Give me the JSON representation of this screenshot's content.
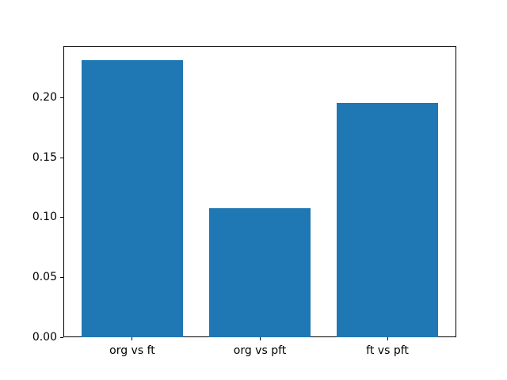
{
  "figure": {
    "background_color": "#ffffff",
    "bar_color": "#1f77b4",
    "spine_color": "#000000",
    "tick_color": "#000000",
    "text_color": "#000000"
  },
  "chart_data": {
    "type": "bar",
    "categories": [
      "org vs ft",
      "org vs pft",
      "ft vs pft"
    ],
    "values": [
      0.232,
      0.108,
      0.196
    ],
    "title": "",
    "xlabel": "",
    "ylabel": "",
    "ylim": [
      0,
      0.2436
    ],
    "xlim": [
      -0.54,
      2.54
    ],
    "yticks": [
      0.0,
      0.05,
      0.1,
      0.15,
      0.2
    ],
    "ytick_labels": [
      "0.00",
      "0.05",
      "0.10",
      "0.15",
      "0.20"
    ],
    "bar_width_fraction": 0.8,
    "grid": false,
    "legend_position": "none"
  }
}
